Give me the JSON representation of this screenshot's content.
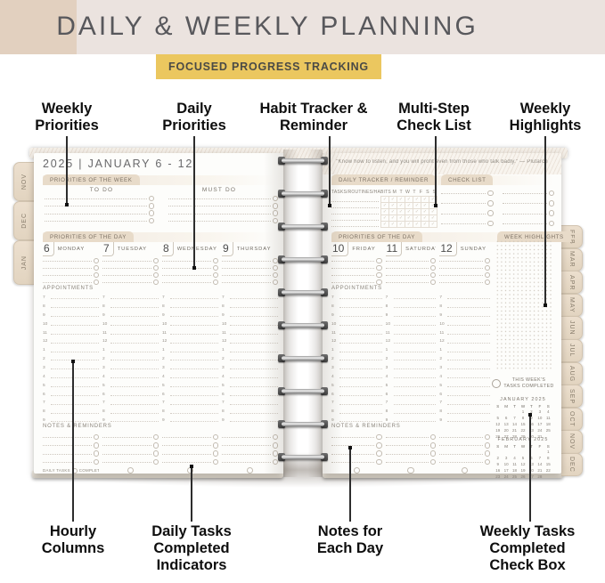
{
  "page_title": "DAILY & WEEKLY PLANNING",
  "badge": "FOCUSED PROGRESS TRACKING",
  "callouts": {
    "top": [
      "Weekly Priorities",
      "Daily Priorities",
      "Habit Tracker & Reminder",
      "Multi-Step Check List",
      "Weekly Highlights"
    ],
    "bottom": [
      "Hourly Columns",
      "Daily Tasks Completed Indicators",
      "Notes for Each Day",
      "Weekly Tasks Completed Check Box"
    ]
  },
  "colors": {
    "hero_band": "#ebe3df",
    "corner_tan": "#e2d0bf",
    "accent_yellow": "#ebc75f",
    "tab_tan": "#e8dbc9",
    "title_gray": "#58585c"
  },
  "planner": {
    "left_tabs": [
      "NOV",
      "DEC",
      "JAN"
    ],
    "right_tabs": [
      "FEB",
      "MAR",
      "APR",
      "MAY",
      "JUN",
      "JUL",
      "AUG",
      "SEP",
      "OCT",
      "NOV",
      "DEC"
    ],
    "left_page": {
      "title": "2025 | JANUARY 6 - 12",
      "priorities_week_label": "PRIORITIES OF THE WEEK",
      "todo_label": "TO DO",
      "must_do_label": "MUST DO",
      "priorities_day_label": "PRIORITIES OF THE DAY",
      "appointments_label": "APPOINTMENTS",
      "notes_label": "NOTES & REMINDERS",
      "daily_tasks_label": "DAILY TASKS",
      "completed_label": "COMPLETED",
      "days": [
        {
          "num": "6",
          "name": "MONDAY"
        },
        {
          "num": "7",
          "name": "TUESDAY"
        },
        {
          "num": "8",
          "name": "WEDNESDAY"
        },
        {
          "num": "9",
          "name": "THURSDAY"
        }
      ],
      "hours": [
        "7",
        "8",
        "9",
        "10",
        "11",
        "12",
        "1",
        "2",
        "3",
        "4",
        "5",
        "6",
        "7",
        "8",
        "9"
      ]
    },
    "right_page": {
      "quote": "\"Know how to listen, and you will profit even from those who talk badly.\" — Plutarch",
      "daily_tracker_label": "DAILY TRACKER / REMINDER",
      "tasks_routines_label": "TASKS/ROUTINES/HABITS",
      "week_initials": [
        "M",
        "T",
        "W",
        "T",
        "F",
        "S",
        "S"
      ],
      "check_list_label": "CHECK LIST",
      "priorities_day_label": "PRIORITIES OF THE DAY",
      "week_highlights_label": "WEEK HIGHLIGHTS",
      "appointments_label": "APPOINTMENTS",
      "notes_label": "NOTES & REMINDERS",
      "weekly_tasks_label": "THIS WEEK'S TASKS COMPLETED",
      "days": [
        {
          "num": "10",
          "name": "FRIDAY"
        },
        {
          "num": "11",
          "name": "SATURDAY"
        },
        {
          "num": "12",
          "name": "SUNDAY"
        }
      ],
      "hours": [
        "7",
        "8",
        "9",
        "10",
        "11",
        "12",
        "1",
        "2",
        "3",
        "4",
        "5",
        "6",
        "7",
        "8",
        "9"
      ],
      "mini_calendars": [
        {
          "title": "JANUARY 2025",
          "dow": [
            "S",
            "M",
            "T",
            "W",
            "T",
            "F",
            "S"
          ],
          "weeks": [
            [
              "",
              "",
              "",
              "1",
              "2",
              "3",
              "4"
            ],
            [
              "5",
              "6",
              "7",
              "8",
              "9",
              "10",
              "11"
            ],
            [
              "12",
              "13",
              "14",
              "15",
              "16",
              "17",
              "18"
            ],
            [
              "19",
              "20",
              "21",
              "22",
              "23",
              "24",
              "25"
            ],
            [
              "26",
              "27",
              "28",
              "29",
              "30",
              "31",
              ""
            ]
          ]
        },
        {
          "title": "FEBRUARY 2025",
          "dow": [
            "S",
            "M",
            "T",
            "W",
            "T",
            "F",
            "S"
          ],
          "weeks": [
            [
              "",
              "",
              "",
              "",
              "",
              "",
              "1"
            ],
            [
              "2",
              "3",
              "4",
              "5",
              "6",
              "7",
              "8"
            ],
            [
              "9",
              "10",
              "11",
              "12",
              "13",
              "14",
              "15"
            ],
            [
              "16",
              "17",
              "18",
              "19",
              "20",
              "21",
              "22"
            ],
            [
              "23",
              "24",
              "25",
              "26",
              "27",
              "28",
              ""
            ]
          ]
        }
      ]
    }
  }
}
